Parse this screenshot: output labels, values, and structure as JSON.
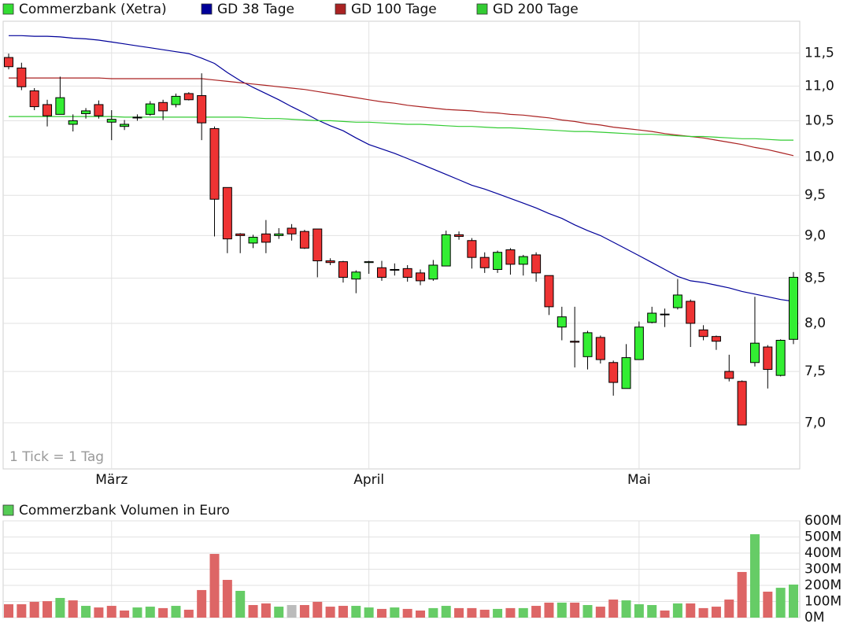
{
  "chart_data": [
    {
      "type": "candlestick",
      "categories": [
        null,
        null,
        null,
        null,
        null,
        null,
        null,
        null,
        "März",
        null,
        null,
        null,
        null,
        null,
        null,
        null,
        null,
        null,
        null,
        null,
        null,
        null,
        null,
        null,
        null,
        null,
        null,
        null,
        "April",
        null,
        null,
        null,
        null,
        null,
        null,
        null,
        null,
        null,
        null,
        null,
        null,
        null,
        null,
        null,
        null,
        null,
        null,
        null,
        null,
        "Mai",
        null,
        null,
        null,
        null,
        null,
        null,
        null,
        null,
        null,
        null,
        null,
        null
      ],
      "candles": {
        "name": "Commerzbank (Xetra)",
        "color": "#33dd33",
        "up_color": "#33ee33",
        "down_color": "#ee3333",
        "open": [
          11.43,
          11.27,
          10.93,
          10.73,
          10.59,
          10.45,
          10.6,
          10.73,
          10.48,
          10.42,
          10.55,
          10.59,
          10.76,
          10.73,
          10.89,
          10.86,
          10.39,
          9.6,
          9.02,
          8.91,
          9.02,
          9.0,
          9.09,
          9.05,
          9.08,
          8.7,
          8.69,
          8.49,
          8.68,
          8.62,
          8.6,
          8.61,
          8.56,
          8.49,
          8.64,
          9.01,
          8.94,
          8.74,
          8.6,
          8.83,
          8.66,
          8.77,
          8.53,
          7.96,
          7.81,
          7.65,
          7.85,
          7.59,
          7.33,
          7.62,
          8.01,
          8.1,
          8.17,
          8.24,
          7.93,
          7.86,
          7.5,
          7.4,
          7.59,
          7.75,
          7.46,
          7.83
        ],
        "high": [
          11.49,
          11.35,
          10.97,
          10.8,
          11.14,
          10.59,
          10.68,
          10.79,
          10.65,
          10.51,
          10.59,
          10.78,
          10.8,
          10.89,
          10.91,
          11.19,
          10.42,
          9.6,
          9.03,
          9.01,
          9.19,
          9.09,
          9.14,
          9.07,
          9.08,
          8.73,
          8.7,
          8.59,
          8.7,
          8.7,
          8.67,
          8.65,
          8.6,
          8.71,
          9.06,
          9.05,
          8.97,
          8.8,
          8.82,
          8.85,
          8.77,
          8.8,
          8.53,
          8.18,
          8.18,
          7.92,
          7.87,
          7.61,
          7.78,
          8.02,
          8.18,
          8.16,
          8.49,
          8.26,
          7.98,
          7.87,
          7.67,
          7.41,
          8.29,
          7.77,
          7.83,
          8.57
        ],
        "low": [
          11.25,
          10.94,
          10.65,
          10.42,
          10.59,
          10.35,
          10.53,
          10.53,
          10.23,
          10.37,
          10.5,
          10.57,
          10.51,
          10.69,
          10.79,
          10.23,
          8.99,
          8.79,
          8.79,
          8.85,
          8.79,
          8.96,
          8.94,
          8.84,
          8.51,
          8.65,
          8.45,
          8.33,
          8.55,
          8.47,
          8.53,
          8.46,
          8.42,
          8.47,
          8.64,
          8.95,
          8.61,
          8.56,
          8.56,
          8.54,
          8.53,
          8.46,
          8.09,
          7.82,
          7.54,
          7.52,
          7.58,
          7.26,
          7.33,
          7.62,
          8.0,
          7.96,
          8.15,
          7.75,
          7.82,
          7.72,
          7.4,
          6.98,
          7.55,
          7.33,
          7.45,
          7.78
        ],
        "close": [
          11.29,
          10.99,
          10.7,
          10.57,
          10.83,
          10.5,
          10.64,
          10.57,
          10.52,
          10.45,
          10.55,
          10.74,
          10.64,
          10.85,
          10.8,
          10.47,
          9.45,
          8.96,
          9.0,
          8.98,
          8.92,
          9.02,
          9.02,
          8.85,
          8.7,
          8.68,
          8.51,
          8.57,
          8.69,
          8.51,
          8.6,
          8.51,
          8.47,
          8.65,
          9.01,
          8.99,
          8.74,
          8.62,
          8.8,
          8.66,
          8.75,
          8.56,
          8.18,
          8.07,
          7.8,
          7.9,
          7.62,
          7.39,
          7.64,
          7.96,
          8.11,
          8.1,
          8.31,
          8.0,
          7.86,
          7.81,
          7.43,
          6.98,
          7.79,
          7.52,
          7.82,
          8.51
        ]
      },
      "series": [
        {
          "name": "GD 38 Tage",
          "color": "#000099",
          "values": [
            11.77,
            11.77,
            11.76,
            11.76,
            11.75,
            11.73,
            11.72,
            11.7,
            11.67,
            11.64,
            11.61,
            11.58,
            11.55,
            11.52,
            11.49,
            11.42,
            11.34,
            11.2,
            11.08,
            10.98,
            10.89,
            10.8,
            10.7,
            10.61,
            10.51,
            10.43,
            10.36,
            10.26,
            10.17,
            10.11,
            10.05,
            9.98,
            9.91,
            9.84,
            9.77,
            9.7,
            9.63,
            9.58,
            9.52,
            9.46,
            9.4,
            9.34,
            9.27,
            9.21,
            9.13,
            9.06,
            9.0,
            8.92,
            8.84,
            8.76,
            8.68,
            8.6,
            8.52,
            8.47,
            8.45,
            8.42,
            8.39,
            8.35,
            8.32,
            8.29,
            8.26,
            8.24
          ]
        },
        {
          "name": "GD 100 Tage",
          "color": "#aa2222",
          "values": [
            11.12,
            11.12,
            11.12,
            11.12,
            11.12,
            11.12,
            11.12,
            11.12,
            11.11,
            11.11,
            11.11,
            11.11,
            11.11,
            11.11,
            11.11,
            11.11,
            11.09,
            11.07,
            11.05,
            11.03,
            11.01,
            10.99,
            10.97,
            10.95,
            10.92,
            10.89,
            10.86,
            10.83,
            10.8,
            10.77,
            10.75,
            10.72,
            10.7,
            10.68,
            10.66,
            10.65,
            10.64,
            10.62,
            10.61,
            10.59,
            10.58,
            10.56,
            10.54,
            10.51,
            10.49,
            10.46,
            10.44,
            10.41,
            10.39,
            10.37,
            10.35,
            10.32,
            10.3,
            10.28,
            10.26,
            10.23,
            10.2,
            10.17,
            10.13,
            10.1,
            10.06,
            10.02
          ]
        },
        {
          "name": "GD 200 Tage",
          "color": "#33cc33",
          "values": [
            10.56,
            10.56,
            10.56,
            10.56,
            10.56,
            10.56,
            10.56,
            10.56,
            10.56,
            10.55,
            10.55,
            10.55,
            10.55,
            10.55,
            10.55,
            10.55,
            10.55,
            10.55,
            10.55,
            10.54,
            10.53,
            10.53,
            10.52,
            10.51,
            10.5,
            10.5,
            10.49,
            10.48,
            10.48,
            10.47,
            10.46,
            10.45,
            10.45,
            10.44,
            10.43,
            10.42,
            10.42,
            10.41,
            10.4,
            10.4,
            10.39,
            10.38,
            10.37,
            10.36,
            10.35,
            10.35,
            10.34,
            10.33,
            10.32,
            10.31,
            10.31,
            10.3,
            10.29,
            10.28,
            10.28,
            10.27,
            10.26,
            10.25,
            10.25,
            10.24,
            10.23,
            10.23
          ]
        }
      ],
      "annotation": "1 Tick = 1 Tag",
      "log_scale": true,
      "grid": true,
      "ylim": [
        6.58,
        12.0
      ],
      "yticks": [
        {
          "value": 7,
          "label": "7,0"
        },
        {
          "value": 7.5,
          "label": "7,5"
        },
        {
          "value": 8,
          "label": "8,0"
        },
        {
          "value": 8.5,
          "label": "8,5"
        },
        {
          "value": 9,
          "label": "9,0"
        },
        {
          "value": 9.5,
          "label": "9,5"
        },
        {
          "value": 10,
          "label": "10,0"
        },
        {
          "value": 10.5,
          "label": "10,5"
        },
        {
          "value": 11,
          "label": "11,0"
        },
        {
          "value": 11.5,
          "label": "11,5"
        }
      ]
    },
    {
      "type": "bar",
      "title": "Commerzbank Volumen in Euro",
      "title_color": "#55cc55",
      "values": [
        83,
        83,
        98,
        102,
        122,
        107,
        73,
        63,
        73,
        44,
        63,
        68,
        59,
        73,
        49,
        171,
        395,
        234,
        166,
        78,
        88,
        68,
        78,
        78,
        98,
        68,
        73,
        73,
        63,
        54,
        63,
        54,
        44,
        59,
        73,
        59,
        59,
        49,
        54,
        59,
        59,
        73,
        93,
        93,
        93,
        78,
        68,
        112,
        107,
        83,
        78,
        44,
        88,
        88,
        59,
        68,
        112,
        283,
        517,
        161,
        185,
        205
      ],
      "colors": [
        "#dd6666",
        "#dd6666",
        "#dd6666",
        "#dd6666",
        "#66cc66",
        "#dd6666",
        "#66cc66",
        "#dd6666",
        "#dd6666",
        "#dd6666",
        "#66cc66",
        "#66cc66",
        "#dd6666",
        "#66cc66",
        "#dd6666",
        "#dd6666",
        "#dd6666",
        "#dd6666",
        "#66cc66",
        "#dd6666",
        "#dd6666",
        "#66cc66",
        "#bbbbbb",
        "#dd6666",
        "#dd6666",
        "#dd6666",
        "#dd6666",
        "#66cc66",
        "#66cc66",
        "#dd6666",
        "#66cc66",
        "#dd6666",
        "#dd6666",
        "#66cc66",
        "#66cc66",
        "#dd6666",
        "#dd6666",
        "#dd6666",
        "#66cc66",
        "#dd6666",
        "#66cc66",
        "#dd6666",
        "#dd6666",
        "#66cc66",
        "#dd6666",
        "#66cc66",
        "#dd6666",
        "#dd6666",
        "#66cc66",
        "#66cc66",
        "#66cc66",
        "#dd6666",
        "#66cc66",
        "#dd6666",
        "#dd6666",
        "#dd6666",
        "#dd6666",
        "#dd6666",
        "#66cc66",
        "#dd6666",
        "#66cc66",
        "#66cc66"
      ],
      "grid": true,
      "ylim": [
        0,
        600
      ],
      "yticks": [
        {
          "value": 0,
          "label": "0M"
        },
        {
          "value": 100,
          "label": "100M"
        },
        {
          "value": 200,
          "label": "200M"
        },
        {
          "value": 300,
          "label": "300M"
        },
        {
          "value": 400,
          "label": "400M"
        },
        {
          "value": 500,
          "label": "500M"
        },
        {
          "value": 600,
          "label": "600M"
        }
      ]
    }
  ]
}
